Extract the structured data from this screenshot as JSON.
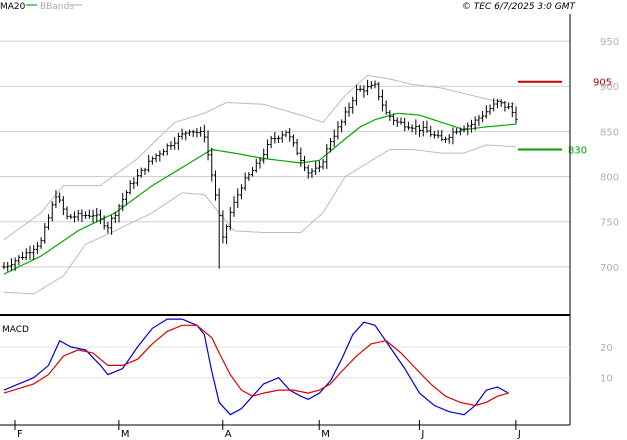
{
  "header": {
    "legend_ma": "MA20",
    "legend_bb": "BBands",
    "copyright": "© TEC 6/7/2025 3:0 GMT"
  },
  "macd_panel": {
    "label": "MACD"
  },
  "levels": {
    "resistance": {
      "value": 905,
      "label": "905",
      "color": "#c00000"
    },
    "support": {
      "value": 830,
      "label": "830",
      "color": "#00a000"
    }
  },
  "colors": {
    "ma": "#00aa00",
    "bb": "#bbbbbb",
    "macd": "#0000dd",
    "signal": "#dd0000",
    "price": "#000000"
  },
  "chart_data": [
    {
      "type": "line",
      "subtype": "price-ohlc-with-ma-and-bollinger-bands",
      "ylim": [
        650,
        980
      ],
      "yticks": [
        "950",
        "900",
        "850",
        "800",
        "750",
        "700"
      ],
      "x_months": [
        {
          "label": "F",
          "index": 0
        },
        {
          "label": "M",
          "index": 28
        },
        {
          "label": "A",
          "index": 56
        },
        {
          "label": "M",
          "index": 82
        },
        {
          "label": "J",
          "index": 109
        },
        {
          "label": "J",
          "index": 135
        }
      ],
      "n_bars": 139,
      "close_series_anchors": [
        [
          0,
          700
        ],
        [
          5,
          712
        ],
        [
          10,
          728
        ],
        [
          14,
          780
        ],
        [
          17,
          755
        ],
        [
          24,
          758
        ],
        [
          28,
          745
        ],
        [
          34,
          790
        ],
        [
          40,
          820
        ],
        [
          46,
          840
        ],
        [
          50,
          852
        ],
        [
          54,
          846
        ],
        [
          57,
          780
        ],
        [
          59,
          730
        ],
        [
          61,
          760
        ],
        [
          64,
          790
        ],
        [
          68,
          812
        ],
        [
          72,
          840
        ],
        [
          76,
          850
        ],
        [
          80,
          820
        ],
        [
          82,
          805
        ],
        [
          85,
          808
        ],
        [
          88,
          840
        ],
        [
          91,
          860
        ],
        [
          95,
          895
        ],
        [
          100,
          900
        ],
        [
          103,
          870
        ],
        [
          106,
          860
        ],
        [
          110,
          856
        ],
        [
          114,
          850
        ],
        [
          118,
          840
        ],
        [
          122,
          852
        ],
        [
          126,
          858
        ],
        [
          130,
          872
        ],
        [
          133,
          882
        ],
        [
          136,
          876
        ],
        [
          138,
          866
        ]
      ],
      "ma20_anchors": [
        [
          0,
          692
        ],
        [
          10,
          712
        ],
        [
          20,
          740
        ],
        [
          30,
          760
        ],
        [
          40,
          790
        ],
        [
          50,
          815
        ],
        [
          56,
          830
        ],
        [
          62,
          826
        ],
        [
          70,
          820
        ],
        [
          80,
          815
        ],
        [
          85,
          818
        ],
        [
          90,
          835
        ],
        [
          96,
          855
        ],
        [
          100,
          863
        ],
        [
          106,
          870
        ],
        [
          112,
          868
        ],
        [
          118,
          860
        ],
        [
          124,
          852
        ],
        [
          130,
          855
        ],
        [
          138,
          858
        ]
      ],
      "bb_upper_anchors": [
        [
          0,
          730
        ],
        [
          10,
          760
        ],
        [
          16,
          790
        ],
        [
          26,
          790
        ],
        [
          36,
          820
        ],
        [
          46,
          860
        ],
        [
          54,
          870
        ],
        [
          60,
          882
        ],
        [
          70,
          880
        ],
        [
          80,
          868
        ],
        [
          86,
          860
        ],
        [
          92,
          890
        ],
        [
          98,
          912
        ],
        [
          104,
          908
        ],
        [
          110,
          902
        ],
        [
          118,
          898
        ],
        [
          124,
          892
        ],
        [
          130,
          886
        ],
        [
          138,
          880
        ]
      ],
      "bb_lower_anchors": [
        [
          0,
          672
        ],
        [
          8,
          670
        ],
        [
          16,
          690
        ],
        [
          22,
          725
        ],
        [
          30,
          740
        ],
        [
          40,
          760
        ],
        [
          48,
          782
        ],
        [
          54,
          780
        ],
        [
          58,
          760
        ],
        [
          62,
          740
        ],
        [
          70,
          738
        ],
        [
          80,
          738
        ],
        [
          86,
          760
        ],
        [
          92,
          800
        ],
        [
          98,
          815
        ],
        [
          104,
          830
        ],
        [
          110,
          830
        ],
        [
          118,
          826
        ],
        [
          124,
          826
        ],
        [
          130,
          835
        ],
        [
          138,
          833
        ]
      ],
      "notable_lows": [
        {
          "index": 58,
          "value": 698
        }
      ]
    },
    {
      "type": "line",
      "title": "MACD",
      "ylim": [
        -5,
        30
      ],
      "yticks": [
        "20",
        "10"
      ],
      "series": [
        {
          "role": "macd",
          "points": [
            [
              0,
              6
            ],
            [
              8,
              10
            ],
            [
              12,
              14
            ],
            [
              15,
              22
            ],
            [
              18,
              20
            ],
            [
              22,
              19
            ],
            [
              26,
              14
            ],
            [
              28,
              11
            ],
            [
              32,
              13
            ],
            [
              36,
              20
            ],
            [
              40,
              26
            ],
            [
              44,
              29
            ],
            [
              48,
              29
            ],
            [
              52,
              27
            ],
            [
              54,
              24
            ],
            [
              56,
              12
            ],
            [
              58,
              2
            ],
            [
              61,
              -2
            ],
            [
              64,
              0
            ],
            [
              67,
              4
            ],
            [
              70,
              8
            ],
            [
              74,
              10
            ],
            [
              77,
              6
            ],
            [
              80,
              4
            ],
            [
              82,
              3
            ],
            [
              85,
              5
            ],
            [
              88,
              9
            ],
            [
              91,
              16
            ],
            [
              94,
              24
            ],
            [
              97,
              28
            ],
            [
              100,
              27
            ],
            [
              104,
              20
            ],
            [
              108,
              13
            ],
            [
              112,
              5
            ],
            [
              116,
              1
            ],
            [
              120,
              -1
            ],
            [
              124,
              -2
            ],
            [
              127,
              1
            ],
            [
              130,
              6
            ],
            [
              133,
              7
            ],
            [
              136,
              5
            ]
          ]
        },
        {
          "role": "signal",
          "points": [
            [
              0,
              5
            ],
            [
              8,
              8
            ],
            [
              12,
              11
            ],
            [
              16,
              17
            ],
            [
              20,
              19
            ],
            [
              24,
              18
            ],
            [
              28,
              14
            ],
            [
              32,
              14
            ],
            [
              36,
              16
            ],
            [
              40,
              21
            ],
            [
              44,
              25
            ],
            [
              48,
              27
            ],
            [
              52,
              27
            ],
            [
              56,
              23
            ],
            [
              58,
              18
            ],
            [
              61,
              11
            ],
            [
              64,
              6
            ],
            [
              67,
              4
            ],
            [
              70,
              5
            ],
            [
              74,
              6
            ],
            [
              78,
              6
            ],
            [
              82,
              5
            ],
            [
              85,
              6
            ],
            [
              88,
              8
            ],
            [
              91,
              12
            ],
            [
              95,
              17
            ],
            [
              99,
              21
            ],
            [
              103,
              22
            ],
            [
              107,
              18
            ],
            [
              111,
              13
            ],
            [
              115,
              8
            ],
            [
              119,
              4
            ],
            [
              123,
              2
            ],
            [
              127,
              1
            ],
            [
              130,
              2
            ],
            [
              133,
              4
            ],
            [
              136,
              5
            ]
          ]
        }
      ]
    }
  ]
}
